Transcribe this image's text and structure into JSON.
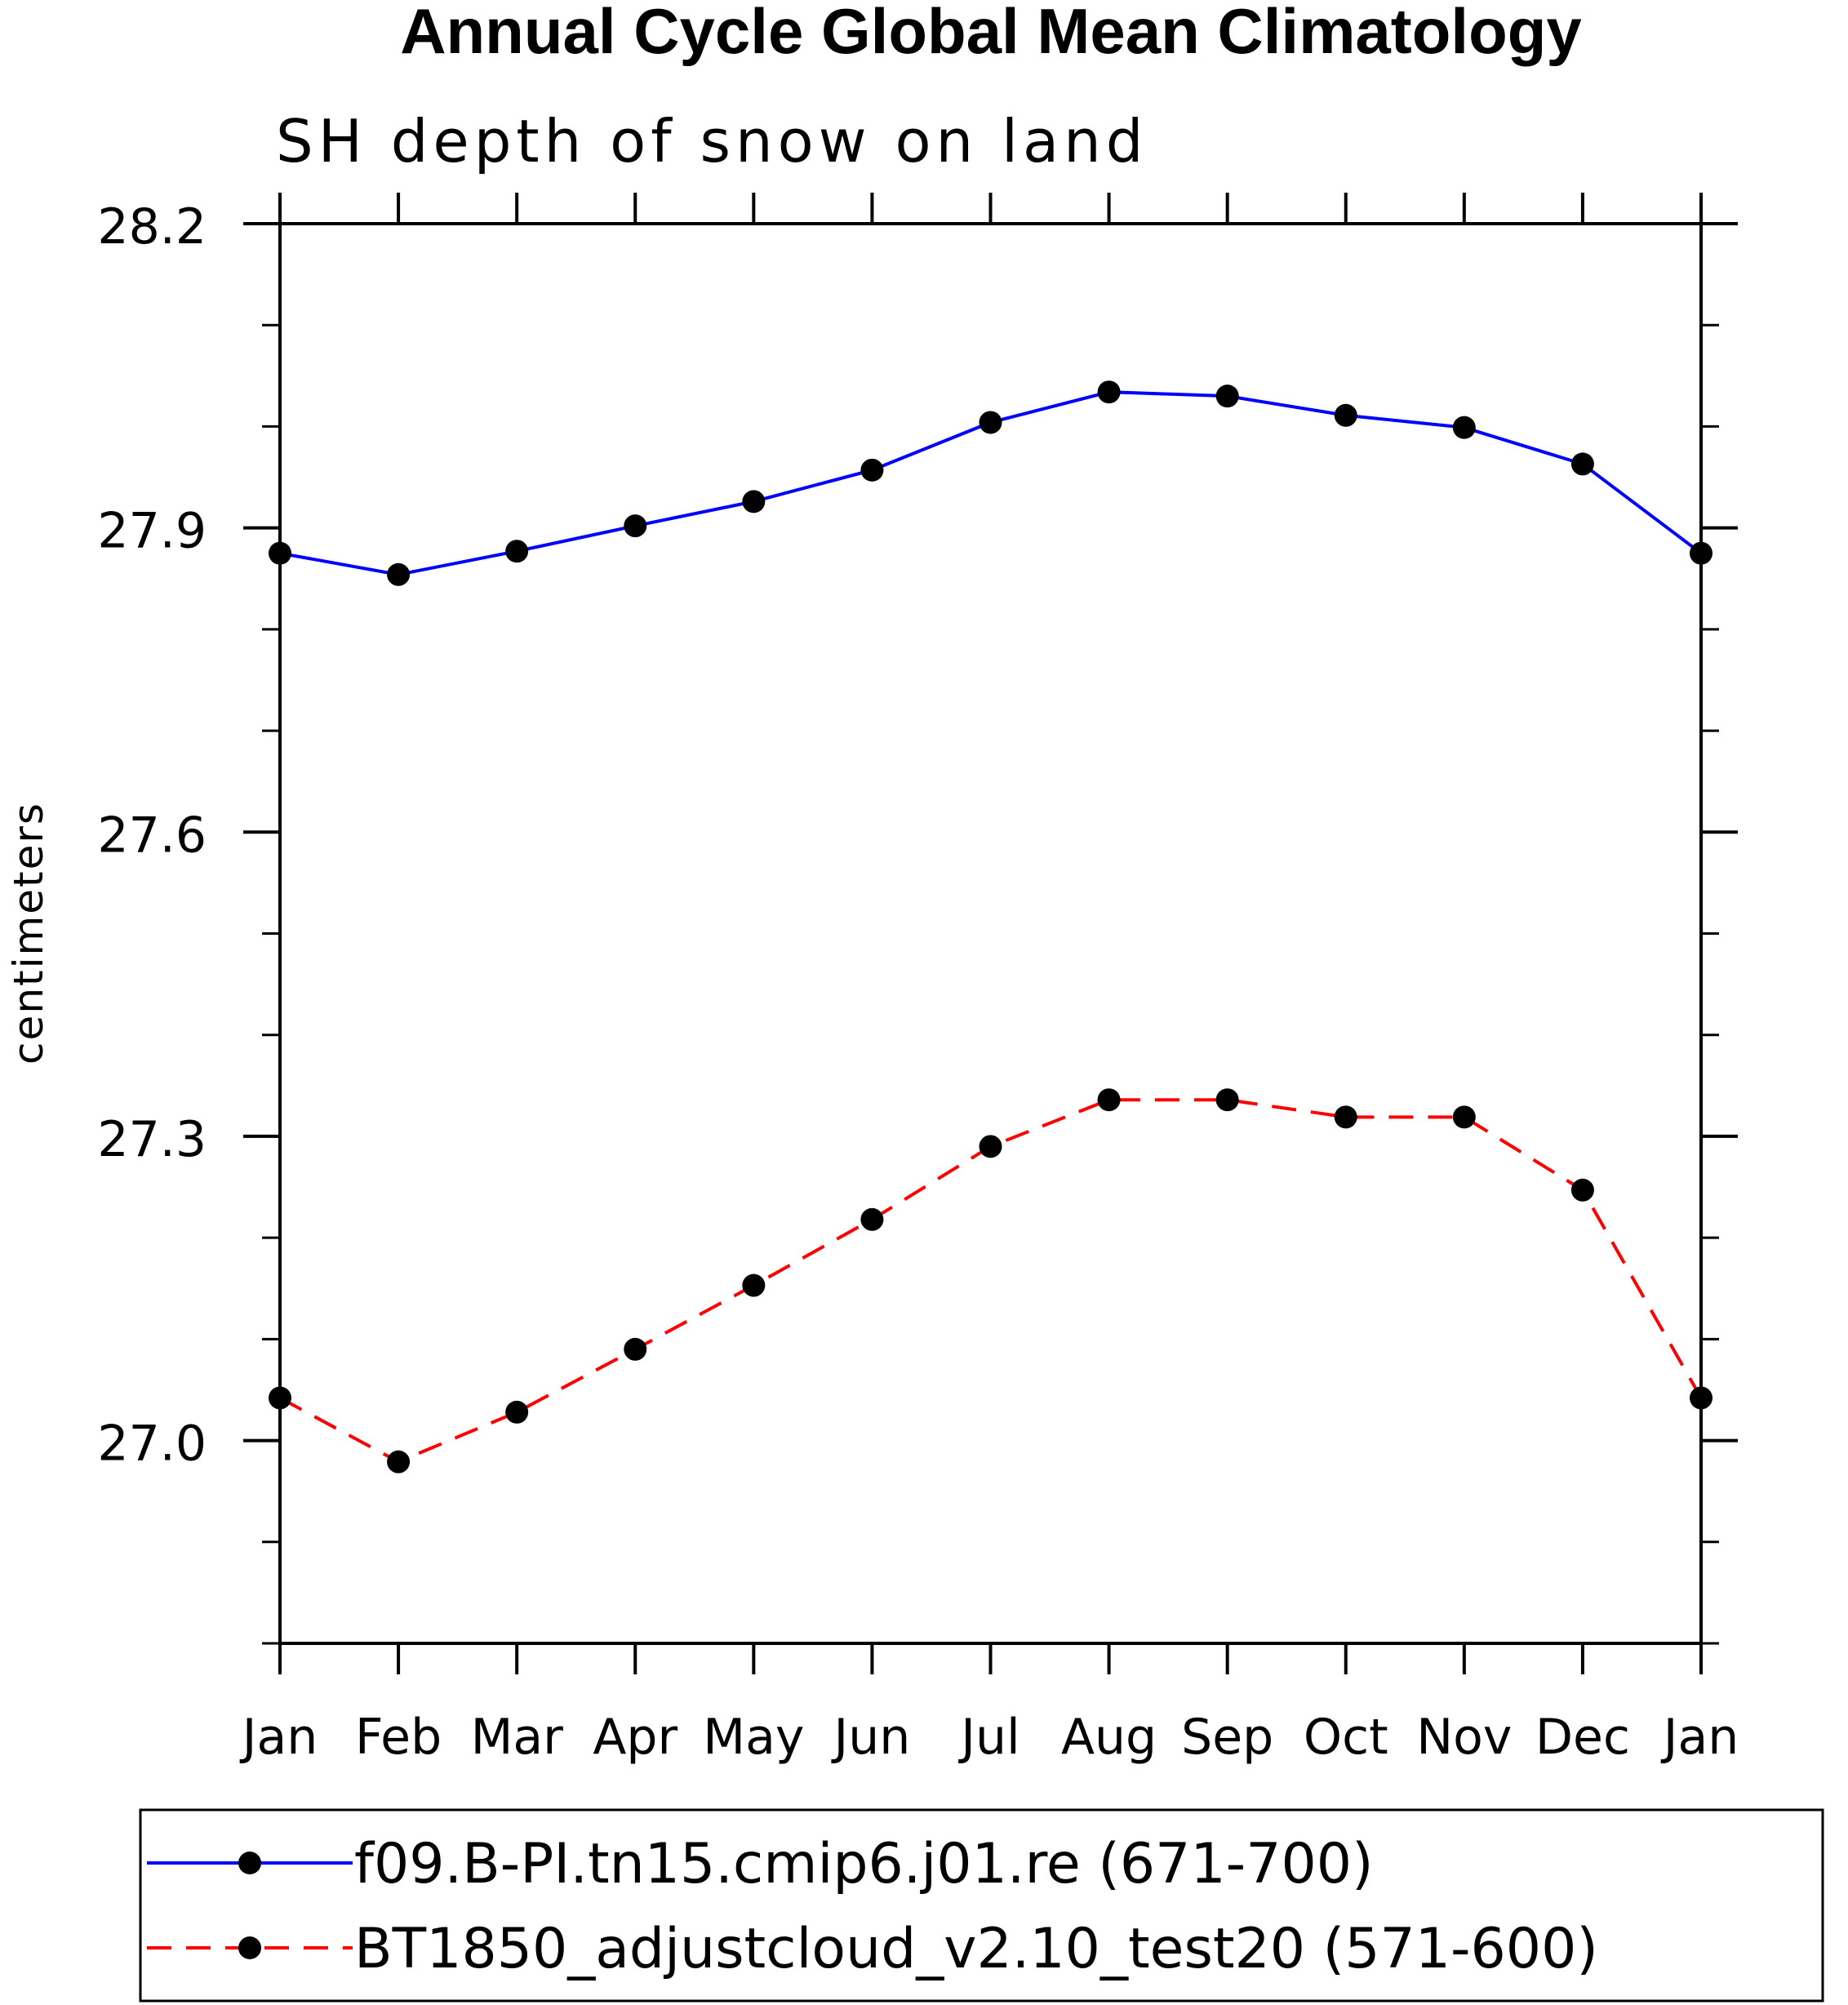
{
  "chart_data": {
    "type": "line",
    "title": "Annual Cycle Global Mean Climatology",
    "subtitle": "SH depth of snow on land",
    "xlabel": "",
    "ylabel": "centimeters",
    "categories": [
      "Jan",
      "Feb",
      "Mar",
      "Apr",
      "May",
      "Jun",
      "Jul",
      "Aug",
      "Sep",
      "Oct",
      "Nov",
      "Dec",
      "Jan"
    ],
    "ylim": [
      26.8,
      28.2
    ],
    "yticks": [
      "27.0",
      "27.3",
      "27.6",
      "27.9",
      "28.2"
    ],
    "series": [
      {
        "name": "f09.B-PI.tn15.cmip6.j01.re (671-700)",
        "color": "#0000ff",
        "style": "solid",
        "values": [
          27.875,
          27.854,
          27.877,
          27.902,
          27.926,
          27.957,
          28.004,
          28.034,
          28.03,
          28.011,
          27.999,
          27.963,
          27.875
        ]
      },
      {
        "name": "BT1850_adjustcloud_v2.10_test20 (571-600)",
        "color": "#ff0000",
        "style": "dashed",
        "values": [
          27.042,
          26.979,
          27.028,
          27.09,
          27.153,
          27.218,
          27.29,
          27.336,
          27.336,
          27.319,
          27.319,
          27.247,
          27.042
        ]
      }
    ],
    "legend_position": "bottom"
  }
}
